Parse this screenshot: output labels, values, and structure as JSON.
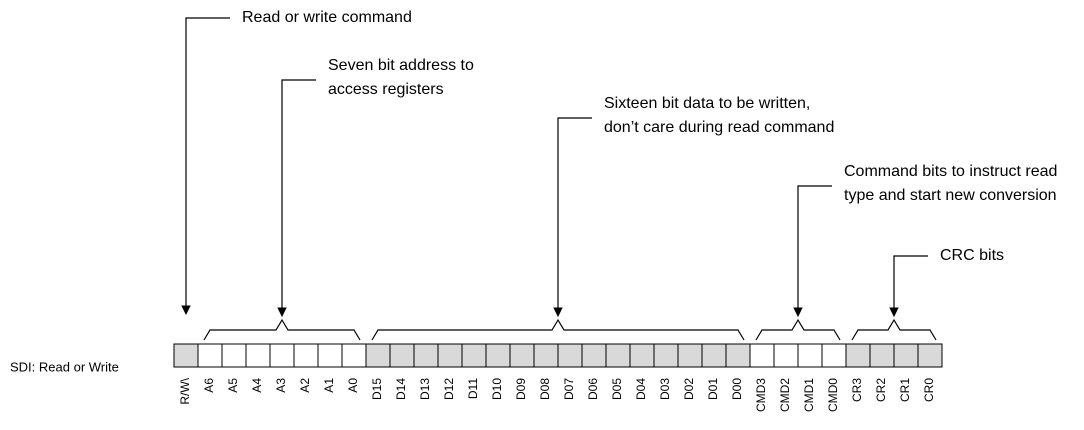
{
  "row_label": "SDI: Read or Write",
  "callouts": [
    {
      "lines": [
        "Read or write command"
      ]
    },
    {
      "lines": [
        "Seven bit address to",
        "access registers"
      ]
    },
    {
      "lines": [
        "Sixteen bit data to be written,",
        "don’t care during read command"
      ]
    },
    {
      "lines": [
        "Command bits to instruct read",
        "type and start new conversion"
      ]
    },
    {
      "lines": [
        "CRC bits"
      ]
    }
  ],
  "groups": [
    {
      "bits": [
        "R/W\\"
      ]
    },
    {
      "bits": [
        "A6",
        "A5",
        "A4",
        "A3",
        "A2",
        "A1",
        "A0"
      ]
    },
    {
      "bits": [
        "D15",
        "D14",
        "D13",
        "D12",
        "D11",
        "D10",
        "D09",
        "D08",
        "D07",
        "D06",
        "D05",
        "D04",
        "D03",
        "D02",
        "D01",
        "D00"
      ]
    },
    {
      "bits": [
        "CMD3",
        "CMD2",
        "CMD1",
        "CMD0"
      ]
    },
    {
      "bits": [
        "CR3",
        "CR2",
        "CR1",
        "CR0"
      ]
    }
  ]
}
